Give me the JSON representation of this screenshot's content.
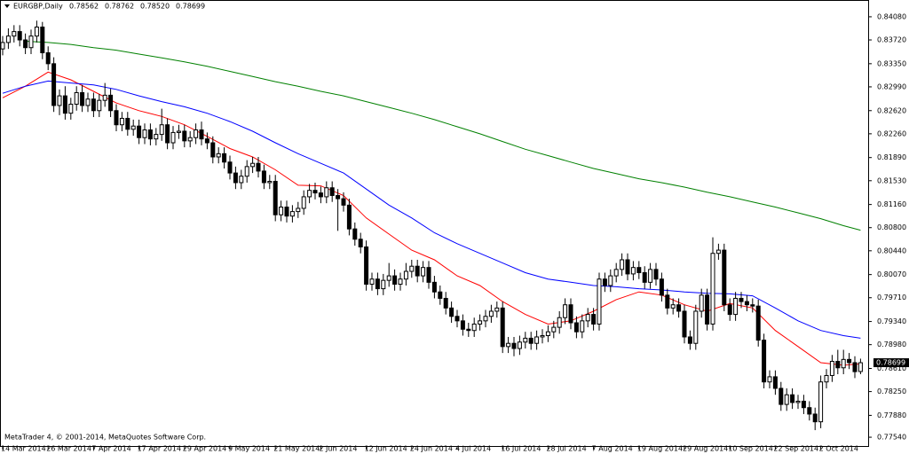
{
  "chart_data": {
    "type": "candlestick",
    "header": {
      "symbol": "EURGBP,Daily",
      "ohlc": [
        "0.78562",
        "0.78762",
        "0.78520",
        "0.78699"
      ]
    },
    "footer": "MetaTrader 4, © 2001-2014, MetaQuotes Software Corp.",
    "current_price": {
      "value": 0.78699,
      "label": "0.78699"
    },
    "categories": [
      "14 Mar 2014",
      null,
      null,
      null,
      null,
      null,
      null,
      null,
      "26 Mar 2014",
      null,
      null,
      null,
      null,
      null,
      null,
      null,
      "7 Apr 2014",
      null,
      null,
      null,
      null,
      null,
      null,
      null,
      "17 Apr 2014",
      null,
      null,
      null,
      null,
      null,
      null,
      null,
      "29 Apr 2014",
      null,
      null,
      null,
      null,
      null,
      null,
      null,
      "9 May 2014",
      null,
      null,
      null,
      null,
      null,
      null,
      null,
      "21 May 2014",
      null,
      null,
      null,
      null,
      null,
      null,
      null,
      "2 Jun 2014",
      null,
      null,
      null,
      null,
      null,
      null,
      null,
      "12 Jun 2014",
      null,
      null,
      null,
      null,
      null,
      null,
      null,
      "24 Jun 2014",
      null,
      null,
      null,
      null,
      null,
      null,
      null,
      "4 Jul 2014",
      null,
      null,
      null,
      null,
      null,
      null,
      null,
      "16 Jul 2014",
      null,
      null,
      null,
      null,
      null,
      null,
      null,
      "28 Jul 2014",
      null,
      null,
      null,
      null,
      null,
      null,
      null,
      "7 Aug 2014",
      null,
      null,
      null,
      null,
      null,
      null,
      null,
      "19 Aug 2014",
      null,
      null,
      null,
      null,
      null,
      null,
      null,
      "29 Aug 2014",
      null,
      null,
      null,
      null,
      null,
      null,
      null,
      "10 Sep 2014",
      null,
      null,
      null,
      null,
      null,
      null,
      null,
      "22 Sep 2014",
      null,
      null,
      null,
      null,
      null,
      null,
      null,
      "2 Oct 2014",
      null,
      null,
      null,
      null,
      null,
      null,
      null
    ],
    "open": [
      0.8358,
      0.8368,
      0.8378,
      0.8385,
      0.8372,
      0.836,
      0.8378,
      0.8392,
      0.8352,
      0.8335,
      0.827,
      0.8285,
      0.8258,
      0.8272,
      0.829,
      0.827,
      0.828,
      0.8262,
      0.8278,
      0.8286,
      0.8262,
      0.824,
      0.825,
      0.8233,
      0.8238,
      0.822,
      0.8232,
      0.8218,
      0.8225,
      0.824,
      0.8212,
      0.8228,
      0.823,
      0.8215,
      0.822,
      0.8232,
      0.8218,
      0.8212,
      0.819,
      0.8195,
      0.8182,
      0.8165,
      0.815,
      0.816,
      0.8175,
      0.818,
      0.8168,
      0.815,
      0.8152,
      0.81,
      0.8112,
      0.8098,
      0.8105,
      0.811,
      0.8128,
      0.8138,
      0.8134,
      0.8128,
      0.8142,
      0.813,
      0.8125,
      0.8115,
      0.8078,
      0.8062,
      0.805,
      0.7992,
      0.8,
      0.7985,
      0.7998,
      0.8005,
      0.7992,
      0.8,
      0.8012,
      0.802,
      0.8005,
      0.8018,
      0.7995,
      0.798,
      0.797,
      0.7955,
      0.7942,
      0.7935,
      0.7922,
      0.792,
      0.793,
      0.7935,
      0.7942,
      0.795,
      0.7955,
      0.7895,
      0.79,
      0.7892,
      0.7902,
      0.7908,
      0.79,
      0.791,
      0.7912,
      0.7918,
      0.7925,
      0.794,
      0.796,
      0.7932,
      0.7918,
      0.7935,
      0.7945,
      0.793,
      0.8,
      0.799,
      0.8005,
      0.8015,
      0.803,
      0.8008,
      0.8018,
      0.801,
      0.7995,
      0.8015,
      0.8,
      0.7975,
      0.7955,
      0.796,
      0.795,
      0.791,
      0.79,
      0.795,
      0.7975,
      0.793,
      0.804,
      0.8045,
      0.796,
      0.7945,
      0.797,
      0.7965,
      0.796,
      0.7958,
      0.7905,
      0.784,
      0.7848,
      0.783,
      0.7805,
      0.782,
      0.7808,
      0.781,
      0.78,
      0.779,
      0.7778,
      0.784,
      0.785,
      0.7872,
      0.7862,
      0.7875,
      0.787,
      0.78562
    ],
    "high": [
      0.8378,
      0.839,
      0.8395,
      0.8395,
      0.8382,
      0.8388,
      0.8402,
      0.84,
      0.8362,
      0.8345,
      0.8295,
      0.83,
      0.8282,
      0.83,
      0.8302,
      0.829,
      0.829,
      0.8288,
      0.8305,
      0.8296,
      0.8272,
      0.826,
      0.826,
      0.8248,
      0.8248,
      0.8242,
      0.8242,
      0.8235,
      0.8265,
      0.825,
      0.8238,
      0.824,
      0.824,
      0.823,
      0.8242,
      0.8245,
      0.8228,
      0.8222,
      0.8205,
      0.8205,
      0.8192,
      0.8175,
      0.817,
      0.8185,
      0.819,
      0.819,
      0.8178,
      0.8162,
      0.8162,
      0.8122,
      0.8122,
      0.8115,
      0.812,
      0.8138,
      0.8148,
      0.815,
      0.8144,
      0.8152,
      0.8152,
      0.814,
      0.8135,
      0.8125,
      0.8088,
      0.8072,
      0.806,
      0.801,
      0.801,
      0.8008,
      0.8025,
      0.8015,
      0.801,
      0.8025,
      0.803,
      0.803,
      0.8028,
      0.8028,
      0.8005,
      0.799,
      0.798,
      0.7965,
      0.7952,
      0.7945,
      0.7932,
      0.794,
      0.7945,
      0.7952,
      0.796,
      0.7965,
      0.7965,
      0.791,
      0.791,
      0.7912,
      0.7918,
      0.7918,
      0.792,
      0.7922,
      0.7928,
      0.7935,
      0.795,
      0.797,
      0.797,
      0.7942,
      0.7945,
      0.7955,
      0.7955,
      0.801,
      0.801,
      0.8015,
      0.8025,
      0.804,
      0.804,
      0.8028,
      0.8028,
      0.802,
      0.8025,
      0.8025,
      0.801,
      0.7985,
      0.797,
      0.797,
      0.796,
      0.792,
      0.796,
      0.7985,
      0.7985,
      0.8065,
      0.8055,
      0.8055,
      0.797,
      0.798,
      0.798,
      0.7975,
      0.797,
      0.7968,
      0.7915,
      0.7858,
      0.7858,
      0.784,
      0.783,
      0.783,
      0.782,
      0.782,
      0.781,
      0.78,
      0.785,
      0.786,
      0.7882,
      0.789,
      0.789,
      0.7885,
      0.788,
      0.78762
    ],
    "low": [
      0.8348,
      0.8358,
      0.8368,
      0.8362,
      0.835,
      0.835,
      0.8368,
      0.8342,
      0.8325,
      0.826,
      0.8255,
      0.8248,
      0.8248,
      0.8262,
      0.826,
      0.826,
      0.8252,
      0.8252,
      0.8268,
      0.8252,
      0.823,
      0.823,
      0.8223,
      0.8223,
      0.821,
      0.821,
      0.8208,
      0.8208,
      0.8215,
      0.8202,
      0.8202,
      0.8218,
      0.8205,
      0.8205,
      0.821,
      0.8208,
      0.8202,
      0.818,
      0.818,
      0.8172,
      0.8155,
      0.814,
      0.814,
      0.815,
      0.8165,
      0.8158,
      0.814,
      0.814,
      0.809,
      0.809,
      0.8088,
      0.8088,
      0.8095,
      0.81,
      0.8118,
      0.8124,
      0.8118,
      0.8118,
      0.812,
      0.8075,
      0.8105,
      0.8068,
      0.8052,
      0.804,
      0.7982,
      0.7982,
      0.7975,
      0.7975,
      0.7988,
      0.7982,
      0.7982,
      0.799,
      0.8002,
      0.7995,
      0.7995,
      0.7985,
      0.797,
      0.796,
      0.7945,
      0.7932,
      0.7925,
      0.7912,
      0.791,
      0.791,
      0.792,
      0.7925,
      0.7932,
      0.794,
      0.7885,
      0.7885,
      0.788,
      0.7882,
      0.7892,
      0.789,
      0.789,
      0.79,
      0.7902,
      0.7908,
      0.7915,
      0.793,
      0.7922,
      0.7908,
      0.7908,
      0.7925,
      0.792,
      0.792,
      0.798,
      0.798,
      0.7995,
      0.8005,
      0.7998,
      0.7998,
      0.8,
      0.7985,
      0.7985,
      0.799,
      0.7965,
      0.7945,
      0.7945,
      0.794,
      0.79,
      0.789,
      0.789,
      0.794,
      0.792,
      0.792,
      0.803,
      0.795,
      0.7935,
      0.7935,
      0.7955,
      0.795,
      0.7948,
      0.7895,
      0.783,
      0.783,
      0.782,
      0.7795,
      0.7795,
      0.7798,
      0.7798,
      0.779,
      0.778,
      0.7765,
      0.7768,
      0.783,
      0.784,
      0.7852,
      0.7852,
      0.786,
      0.7846,
      0.7852
    ],
    "close": [
      0.8368,
      0.8378,
      0.8385,
      0.8372,
      0.836,
      0.8378,
      0.8392,
      0.8352,
      0.8335,
      0.827,
      0.8285,
      0.8258,
      0.8272,
      0.829,
      0.827,
      0.828,
      0.8262,
      0.8278,
      0.8286,
      0.8262,
      0.824,
      0.825,
      0.8233,
      0.8238,
      0.822,
      0.8232,
      0.8218,
      0.8225,
      0.824,
      0.8212,
      0.8228,
      0.823,
      0.8215,
      0.822,
      0.8232,
      0.8218,
      0.8212,
      0.819,
      0.8195,
      0.8182,
      0.8165,
      0.815,
      0.816,
      0.8175,
      0.818,
      0.8168,
      0.815,
      0.8152,
      0.81,
      0.8112,
      0.8098,
      0.8105,
      0.811,
      0.8128,
      0.8138,
      0.8134,
      0.8128,
      0.8142,
      0.813,
      0.8125,
      0.8115,
      0.8078,
      0.8062,
      0.805,
      0.7992,
      0.8,
      0.7985,
      0.7998,
      0.8005,
      0.7992,
      0.8,
      0.8012,
      0.802,
      0.8005,
      0.8018,
      0.7995,
      0.798,
      0.797,
      0.7955,
      0.7942,
      0.7935,
      0.7922,
      0.792,
      0.793,
      0.7935,
      0.7942,
      0.795,
      0.7955,
      0.7895,
      0.79,
      0.7892,
      0.7902,
      0.7908,
      0.79,
      0.791,
      0.7912,
      0.7918,
      0.7925,
      0.794,
      0.796,
      0.7932,
      0.7918,
      0.7935,
      0.7945,
      0.793,
      0.8,
      0.799,
      0.8005,
      0.8015,
      0.803,
      0.8008,
      0.8018,
      0.801,
      0.7995,
      0.8015,
      0.8,
      0.7975,
      0.7955,
      0.796,
      0.795,
      0.791,
      0.79,
      0.795,
      0.7975,
      0.793,
      0.804,
      0.8045,
      0.796,
      0.7945,
      0.797,
      0.7965,
      0.796,
      0.7958,
      0.7905,
      0.784,
      0.7848,
      0.783,
      0.7805,
      0.782,
      0.7808,
      0.781,
      0.78,
      0.779,
      0.7778,
      0.784,
      0.785,
      0.7872,
      0.7862,
      0.7875,
      0.787,
      0.7856,
      0.78699
    ],
    "lines": [
      {
        "color": "#ff0000",
        "x": [
          0,
          4,
          8,
          12,
          16,
          20,
          24,
          28,
          32,
          36,
          40,
          44,
          48,
          52,
          56,
          60,
          64,
          68,
          72,
          76,
          80,
          84,
          88,
          92,
          96,
          100,
          104,
          108,
          112,
          116,
          120,
          124,
          128,
          132,
          136,
          140,
          144,
          148,
          151
        ],
        "values": [
          0.8282,
          0.83,
          0.8322,
          0.831,
          0.8292,
          0.8274,
          0.8262,
          0.8253,
          0.824,
          0.8222,
          0.8203,
          0.819,
          0.817,
          0.8146,
          0.8145,
          0.813,
          0.8095,
          0.807,
          0.8045,
          0.803,
          0.8005,
          0.799,
          0.7965,
          0.7945,
          0.793,
          0.7935,
          0.795,
          0.7968,
          0.798,
          0.7975,
          0.796,
          0.795,
          0.7962,
          0.7955,
          0.792,
          0.7895,
          0.787,
          0.7866,
          0.7868
        ]
      },
      {
        "color": "#0000ff",
        "x": [
          0,
          4,
          8,
          12,
          16,
          20,
          24,
          28,
          32,
          36,
          40,
          44,
          48,
          52,
          56,
          60,
          64,
          68,
          72,
          76,
          80,
          84,
          88,
          92,
          96,
          100,
          104,
          108,
          112,
          116,
          120,
          124,
          128,
          132,
          136,
          140,
          144,
          148,
          151
        ],
        "values": [
          0.8289,
          0.83,
          0.8308,
          0.8305,
          0.8302,
          0.8295,
          0.8285,
          0.8276,
          0.8268,
          0.8258,
          0.8245,
          0.823,
          0.8212,
          0.8195,
          0.818,
          0.8165,
          0.814,
          0.8115,
          0.8095,
          0.8072,
          0.8055,
          0.804,
          0.8025,
          0.801,
          0.8,
          0.7995,
          0.799,
          0.7988,
          0.7985,
          0.7983,
          0.798,
          0.7978,
          0.7977,
          0.7974,
          0.7955,
          0.7935,
          0.792,
          0.7912,
          0.7908
        ]
      },
      {
        "color": "#008000",
        "x": [
          4,
          8,
          12,
          16,
          20,
          24,
          28,
          32,
          36,
          40,
          44,
          48,
          52,
          56,
          60,
          64,
          68,
          72,
          76,
          80,
          84,
          88,
          92,
          96,
          100,
          104,
          108,
          112,
          116,
          120,
          124,
          128,
          132,
          136,
          140,
          144,
          148,
          151
        ],
        "values": [
          0.837,
          0.8368,
          0.8365,
          0.836,
          0.8356,
          0.835,
          0.8344,
          0.8338,
          0.8331,
          0.8323,
          0.8315,
          0.8307,
          0.83,
          0.8292,
          0.8285,
          0.8276,
          0.8267,
          0.8258,
          0.8248,
          0.8237,
          0.8226,
          0.8214,
          0.8202,
          0.8192,
          0.8182,
          0.8172,
          0.8164,
          0.8156,
          0.815,
          0.8143,
          0.8135,
          0.8128,
          0.812,
          0.8112,
          0.8103,
          0.8094,
          0.8083,
          0.8076
        ]
      }
    ],
    "ylim": [
      0.77403,
      0.84341
    ],
    "yticks": [
      {
        "value": 0.8408,
        "label": "0.84080"
      },
      {
        "value": 0.8372,
        "label": "0.83720"
      },
      {
        "value": 0.8335,
        "label": "0.83350"
      },
      {
        "value": 0.8299,
        "label": "0.82990"
      },
      {
        "value": 0.8262,
        "label": "0.82620"
      },
      {
        "value": 0.8226,
        "label": "0.82260"
      },
      {
        "value": 0.8189,
        "label": "0.81890"
      },
      {
        "value": 0.8153,
        "label": "0.81530"
      },
      {
        "value": 0.8116,
        "label": "0.81160"
      },
      {
        "value": 0.808,
        "label": "0.80800"
      },
      {
        "value": 0.8044,
        "label": "0.80440"
      },
      {
        "value": 0.8007,
        "label": "0.80070"
      },
      {
        "value": 0.7971,
        "label": "0.79710"
      },
      {
        "value": 0.7934,
        "label": "0.79340"
      },
      {
        "value": 0.7898,
        "label": "0.78980"
      },
      {
        "value": 0.7861,
        "label": "0.78610"
      },
      {
        "value": 0.7825,
        "label": "0.78250"
      },
      {
        "value": 0.7788,
        "label": "0.77880"
      },
      {
        "value": 0.7754,
        "label": "0.77540"
      }
    ]
  }
}
